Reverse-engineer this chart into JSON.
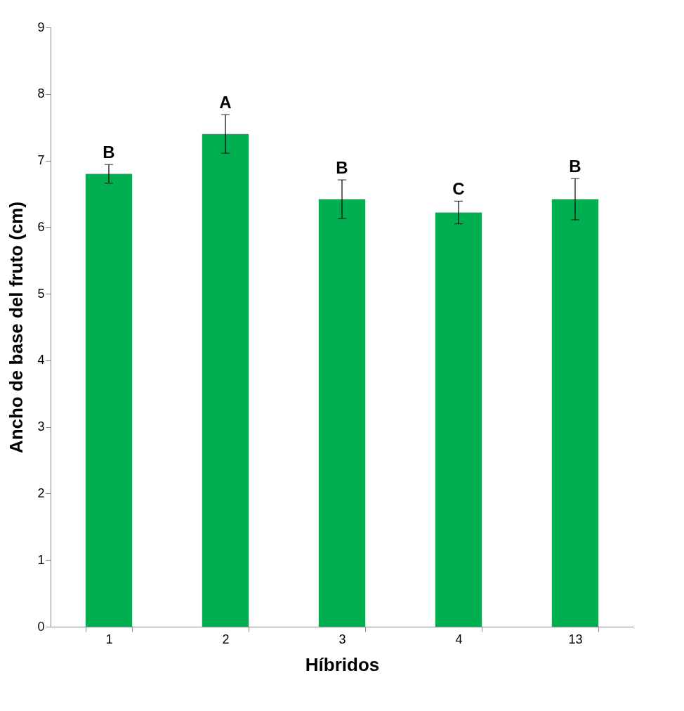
{
  "chart_data": {
    "type": "bar",
    "xlabel": "Híbridos",
    "ylabel": "Ancho de base del fruto (cm)",
    "categories": [
      "1",
      "2",
      "3",
      "4",
      "13"
    ],
    "values": [
      6.8,
      7.4,
      6.42,
      6.22,
      6.42
    ],
    "errors": [
      0.14,
      0.29,
      0.29,
      0.17,
      0.31
    ],
    "color": "#00b050",
    "ylim": [
      0,
      9
    ],
    "yticks": [
      0,
      1,
      2,
      3,
      4,
      5,
      6,
      7,
      8,
      9
    ],
    "grid": false,
    "annotations": [
      {
        "text": "B",
        "x": "1",
        "y": 6.94
      },
      {
        "text": "A",
        "x": "2",
        "y": 7.69
      },
      {
        "text": "B",
        "x": "3",
        "y": 6.71
      },
      {
        "text": "C",
        "x": "4",
        "y": 6.39
      },
      {
        "text": "B",
        "x": "13",
        "y": 6.73
      }
    ]
  }
}
